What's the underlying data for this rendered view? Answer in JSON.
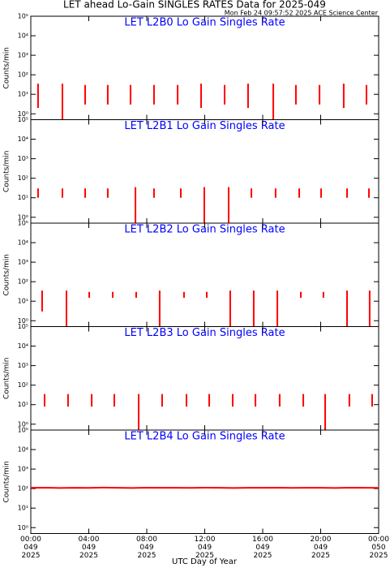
{
  "title": "LET ahead Lo-Gain SINGLES RATES Data for 2025-049",
  "subtitle": "Mon Feb 24 09:57:52 2025 ACE Science Center",
  "xlabel": "UTC Day of Year",
  "chart_data": [
    {
      "type": "range",
      "title": "LET L2B0 Lo Gain Singles Rate",
      "ylabel": "Counts/min",
      "log_y": true,
      "xlim": [
        0,
        24
      ],
      "ylim": [
        0.5,
        100000
      ],
      "yticks": [
        {
          "value": 1,
          "label": "10⁰"
        },
        {
          "value": 10,
          "label": "10¹"
        },
        {
          "value": 100,
          "label": "10²"
        },
        {
          "value": 1000,
          "label": "10³"
        },
        {
          "value": 10000,
          "label": "10⁴"
        },
        {
          "value": 100000,
          "label": "10⁵"
        }
      ],
      "series": [
        {
          "color": "#ff0000",
          "x": [
            0.5,
            2.18,
            3.75,
            5.31,
            6.88,
            8.5,
            10.13,
            11.75,
            13.37,
            14.99,
            16.73,
            18.29,
            19.92,
            21.59,
            23.16
          ],
          "high": [
            35,
            35,
            30,
            30,
            30,
            30,
            30,
            35,
            30,
            35,
            35,
            30,
            30,
            35,
            30
          ],
          "low": [
            2,
            0.5,
            3,
            3,
            3,
            3,
            3,
            2,
            3,
            2,
            0.5,
            3,
            3,
            2,
            3
          ]
        }
      ]
    },
    {
      "type": "range",
      "title": "LET L2B1 Lo Gain Singles Rate",
      "ylabel": "Counts/min",
      "log_y": true,
      "xlim": [
        0,
        24
      ],
      "ylim": [
        0.5,
        100000
      ],
      "yticks": [
        {
          "value": 1,
          "label": "10⁰"
        },
        {
          "value": 10,
          "label": "10¹"
        },
        {
          "value": 100,
          "label": "10²"
        },
        {
          "value": 1000,
          "label": "10³"
        },
        {
          "value": 10000,
          "label": "10⁴"
        },
        {
          "value": 100000,
          "label": "10⁵"
        }
      ],
      "series": [
        {
          "color": "#ff0000",
          "x": [
            0.5,
            2.18,
            3.75,
            5.31,
            7.22,
            8.5,
            10.35,
            11.97,
            13.65,
            15.22,
            16.89,
            18.52,
            20.03,
            21.82,
            23.33
          ],
          "high": [
            30,
            30,
            30,
            30,
            35,
            30,
            30,
            35,
            35,
            30,
            30,
            30,
            30,
            30,
            30
          ],
          "low": [
            10,
            10,
            10,
            10,
            0.5,
            10,
            10,
            0.5,
            0.5,
            10,
            10,
            10,
            10,
            10,
            10
          ]
        }
      ]
    },
    {
      "type": "range",
      "title": "LET L2B2 Lo Gain Singles Rate",
      "ylabel": "Counts/min",
      "log_y": true,
      "xlim": [
        0,
        24
      ],
      "ylim": [
        0.5,
        100000
      ],
      "yticks": [
        {
          "value": 1,
          "label": "10⁰"
        },
        {
          "value": 10,
          "label": "10¹"
        },
        {
          "value": 100,
          "label": "10²"
        },
        {
          "value": 1000,
          "label": "10³"
        },
        {
          "value": 10000,
          "label": "10⁴"
        },
        {
          "value": 100000,
          "label": "10⁵"
        }
      ],
      "series": [
        {
          "color": "#ff0000",
          "x": [
            0.78,
            2.46,
            4.03,
            5.65,
            7.27,
            8.89,
            10.57,
            12.14,
            13.76,
            15.38,
            17.01,
            18.63,
            20.19,
            21.82,
            23.38
          ],
          "high": [
            35,
            35,
            30,
            30,
            30,
            35,
            30,
            30,
            35,
            35,
            35,
            30,
            30,
            35,
            35
          ],
          "low": [
            3,
            0.5,
            15,
            15,
            15,
            0.5,
            15,
            15,
            0.5,
            0.5,
            0.5,
            15,
            15,
            0.5,
            0.5
          ]
        }
      ]
    },
    {
      "type": "range",
      "title": "LET L2B3 Lo Gain Singles Rate",
      "ylabel": "Counts/min",
      "log_y": true,
      "xlim": [
        0,
        24
      ],
      "ylim": [
        0.5,
        100000
      ],
      "yticks": [
        {
          "value": 1,
          "label": "10⁰"
        },
        {
          "value": 10,
          "label": "10¹"
        },
        {
          "value": 100,
          "label": "10²"
        },
        {
          "value": 1000,
          "label": "10³"
        },
        {
          "value": 10000,
          "label": "10⁴"
        },
        {
          "value": 100000,
          "label": "10⁵"
        }
      ],
      "series": [
        {
          "color": "#ff0000",
          "x": [
            0.95,
            2.57,
            4.2,
            5.76,
            7.44,
            9.06,
            10.74,
            12.31,
            13.93,
            15.5,
            17.17,
            18.8,
            20.31,
            21.98,
            23.55
          ],
          "high": [
            35,
            35,
            35,
            35,
            35,
            35,
            35,
            35,
            35,
            35,
            35,
            35,
            35,
            35,
            35
          ],
          "low": [
            8,
            8,
            8,
            8,
            0.5,
            8,
            8,
            8,
            8,
            8,
            8,
            8,
            0.5,
            8,
            8
          ]
        }
      ]
    },
    {
      "type": "line",
      "title": "LET L2B4 Lo Gain Singles Rate",
      "ylabel": "Counts/min",
      "log_y": true,
      "xlim": [
        0,
        24
      ],
      "ylim": [
        0.5,
        100000
      ],
      "yticks": [
        {
          "value": 1,
          "label": "10⁰"
        },
        {
          "value": 10,
          "label": "10¹"
        },
        {
          "value": 100,
          "label": "10²"
        },
        {
          "value": 1000,
          "label": "10³"
        },
        {
          "value": 10000,
          "label": "10⁴"
        },
        {
          "value": 100000,
          "label": "10⁵"
        }
      ],
      "xticks": [
        {
          "value": 0,
          "label": "00:00",
          "day": "049",
          "year": "2025"
        },
        {
          "value": 4,
          "label": "04:00",
          "day": "049",
          "year": "2025"
        },
        {
          "value": 8,
          "label": "08:00",
          "day": "049",
          "year": "2025"
        },
        {
          "value": 12,
          "label": "12:00",
          "day": "049",
          "year": "2025"
        },
        {
          "value": 16,
          "label": "16:00",
          "day": "049",
          "year": "2025"
        },
        {
          "value": 20,
          "label": "20:00",
          "day": "049",
          "year": "2025"
        },
        {
          "value": 24,
          "label": "00:00",
          "day": "050",
          "year": "2025"
        }
      ],
      "series": [
        {
          "color": "#ff0000",
          "x": [
            0,
            1,
            2,
            3,
            4,
            5,
            6,
            7,
            8,
            9,
            10,
            11,
            12,
            13,
            14,
            15,
            16,
            17,
            18,
            19,
            20,
            21,
            22,
            23,
            24
          ],
          "values": [
            110,
            112,
            108,
            111,
            109,
            113,
            110,
            108,
            112,
            110,
            111,
            109,
            112,
            110,
            108,
            111,
            110,
            112,
            109,
            111,
            110,
            108,
            112,
            110,
            109
          ]
        }
      ]
    }
  ]
}
